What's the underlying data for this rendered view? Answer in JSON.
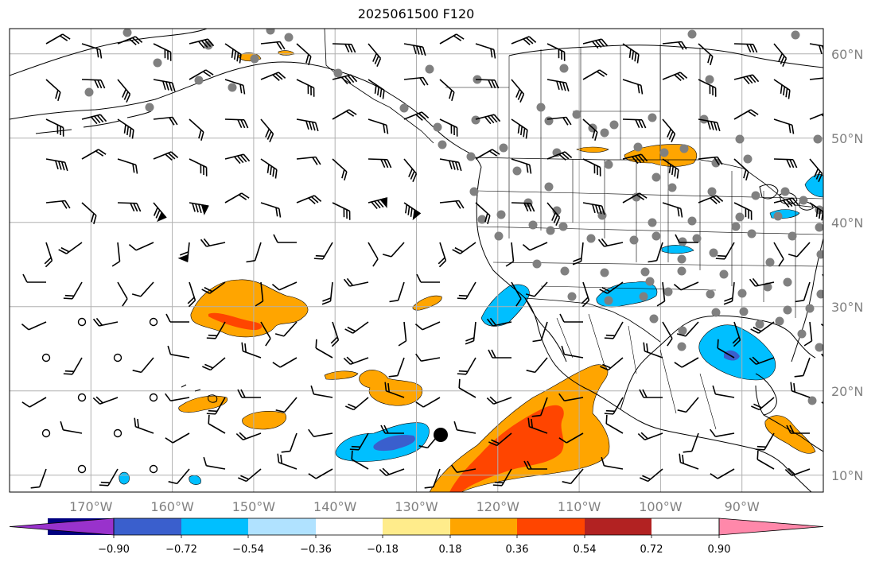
{
  "title": "2025061500 F120",
  "map": {
    "lat_labels": [
      {
        "lat": 60,
        "text": "60°N"
      },
      {
        "lat": 50,
        "text": "50°N"
      },
      {
        "lat": 40,
        "text": "40°N"
      },
      {
        "lat": 30,
        "text": "30°N"
      },
      {
        "lat": 20,
        "text": "20°N"
      },
      {
        "lat": 10,
        "text": "10°N"
      }
    ],
    "lon_labels": [
      {
        "lon": -170,
        "text": "170°W"
      },
      {
        "lon": -160,
        "text": "160°W"
      },
      {
        "lon": -150,
        "text": "150°W"
      },
      {
        "lon": -140,
        "text": "140°W"
      },
      {
        "lon": -130,
        "text": "130°W"
      },
      {
        "lon": -120,
        "text": "120°W"
      },
      {
        "lon": -110,
        "text": "110°W"
      },
      {
        "lon": -100,
        "text": "100°W"
      },
      {
        "lon": -90,
        "text": "90°W"
      }
    ],
    "extent": {
      "lon_min": -180,
      "lon_max": -80,
      "lat_min": 8,
      "lat_max": 63
    },
    "colors": {
      "land_outline": "#000000",
      "grid": "#b0b0b0",
      "station_dot": "#808080",
      "barb": "#000000"
    },
    "positive_regions_note_color": "#ffa500",
    "negative_regions_note_color": "#00bfff"
  },
  "colorbar": {
    "colors": [
      "#9932cc",
      "#000080",
      "#3a5fcd",
      "#00bfff",
      "#b0e2ff",
      "#ffffff",
      "#ffec8b",
      "#ffa500",
      "#ff4500",
      "#b22222",
      "#ff88aa"
    ],
    "tick_labels": [
      "−0.90",
      "−0.72",
      "−0.54",
      "−0.36",
      "−0.18",
      "0.18",
      "0.36",
      "0.54",
      "0.72",
      "0.90"
    ]
  }
}
